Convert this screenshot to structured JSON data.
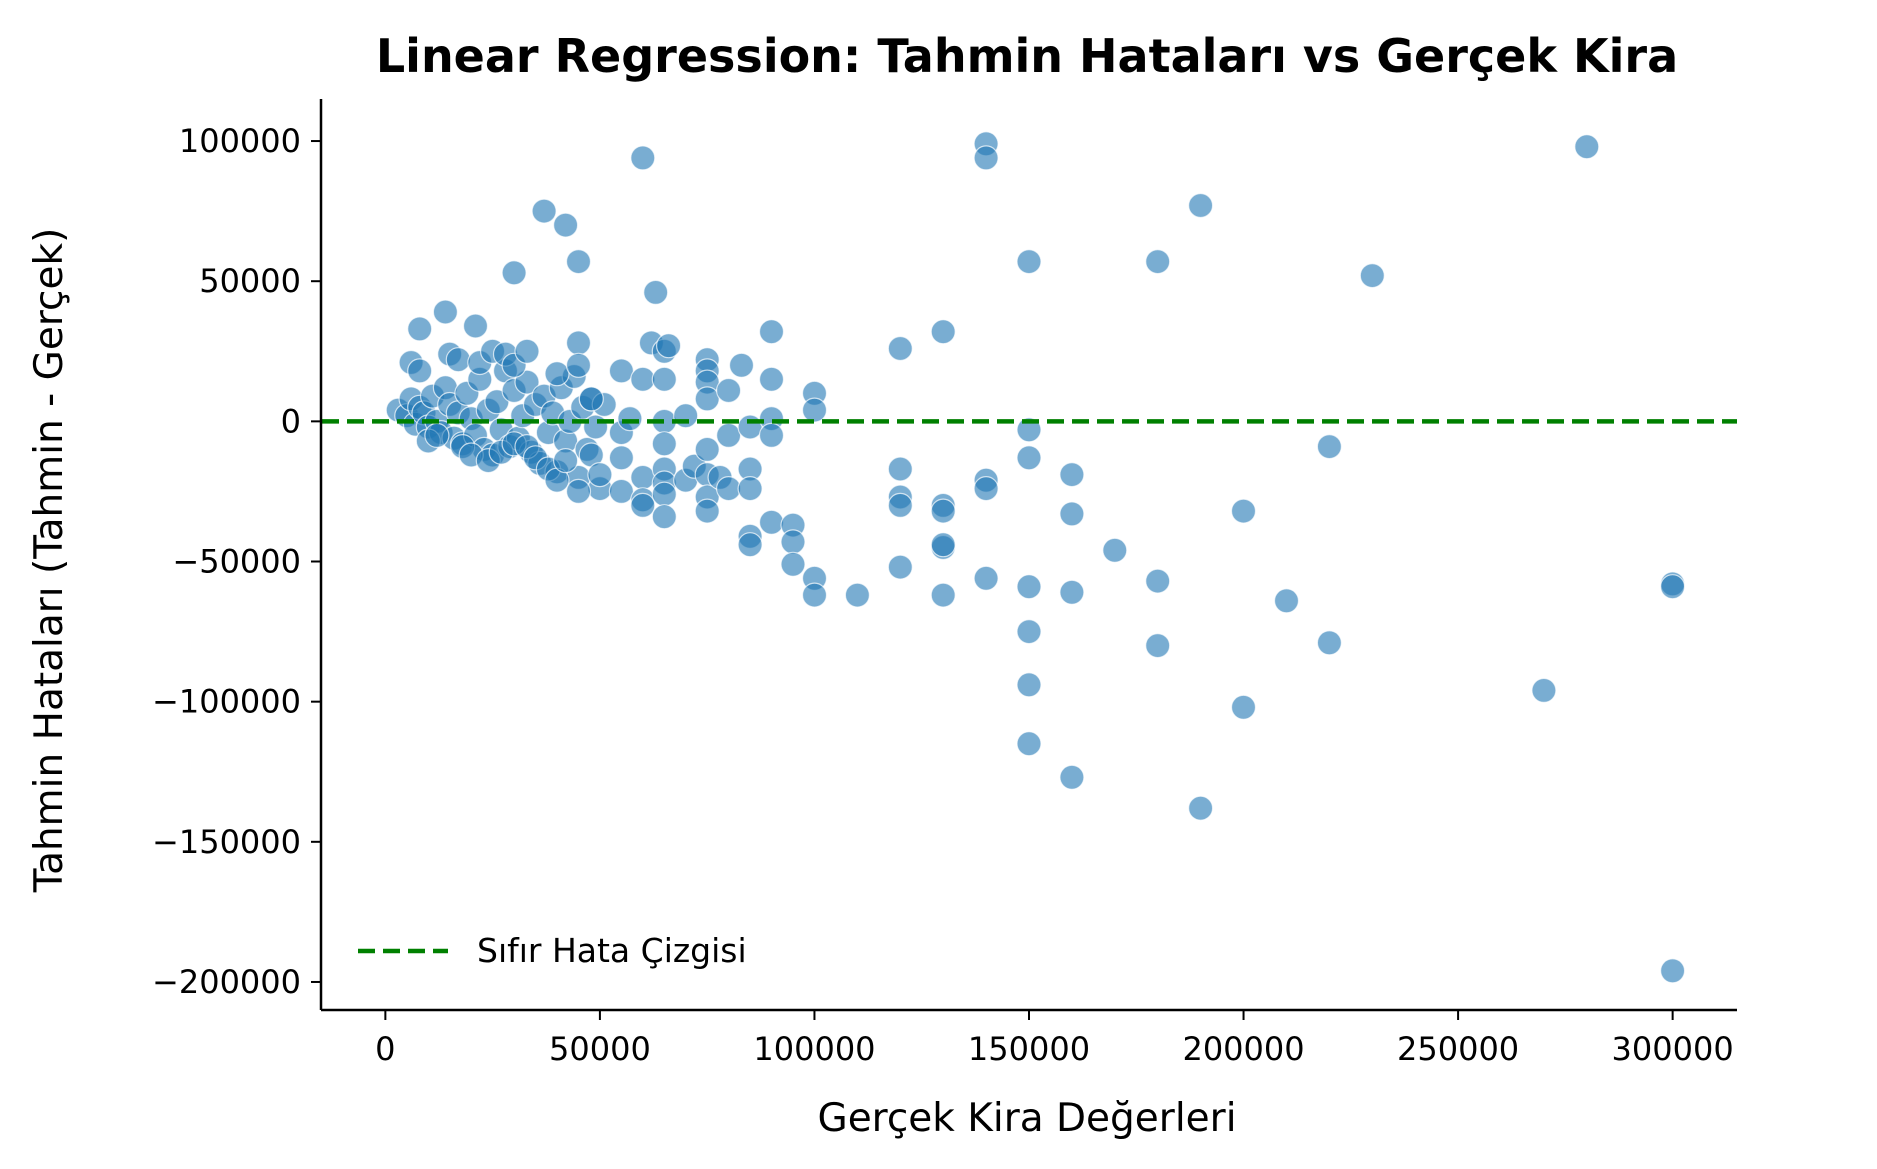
{
  "chart_data": {
    "type": "scatter",
    "title": "Linear Regression: Tahmin Hataları vs Gerçek Kira",
    "xlabel": "Gerçek Kira Değerleri",
    "ylabel": "Tahmin Hataları (Tahmin - Gerçek)",
    "xlim": [
      -15000,
      315000
    ],
    "ylim": [
      -210000,
      115000
    ],
    "x_ticks": [
      0,
      50000,
      100000,
      150000,
      200000,
      250000,
      300000
    ],
    "x_tick_labels": [
      "0",
      "50000",
      "100000",
      "150000",
      "200000",
      "250000",
      "300000"
    ],
    "y_ticks": [
      100000,
      50000,
      0,
      -50000,
      -100000,
      -150000,
      -200000
    ],
    "y_tick_labels": [
      "100000",
      "50000",
      "0",
      "−50000",
      "−100000",
      "−150000",
      "−200000"
    ],
    "grid": false,
    "legend": {
      "position": "lower-left",
      "entries": [
        "Sıfır Hata Çizgisi"
      ]
    },
    "reference_line": {
      "y": 0,
      "style": "dashed",
      "color": "#008000",
      "label": "Sıfır Hata Çizgisi"
    },
    "marker_color": "#1f77b4",
    "series": [
      {
        "points": [
          [
            3000,
            4000
          ],
          [
            5000,
            2000
          ],
          [
            6000,
            8000
          ],
          [
            7000,
            -1000
          ],
          [
            8000,
            5000
          ],
          [
            9000,
            3000
          ],
          [
            10000,
            -2000
          ],
          [
            11000,
            9000
          ],
          [
            12000,
            0
          ],
          [
            13000,
            -4000
          ],
          [
            14000,
            12000
          ],
          [
            15000,
            6000
          ],
          [
            16000,
            -6000
          ],
          [
            17000,
            3000
          ],
          [
            18000,
            -8000
          ],
          [
            19000,
            10000
          ],
          [
            20000,
            1000
          ],
          [
            21000,
            -5000
          ],
          [
            22000,
            15000
          ],
          [
            23000,
            -10000
          ],
          [
            24000,
            4000
          ],
          [
            25000,
            -12000
          ],
          [
            26000,
            7000
          ],
          [
            27000,
            -3000
          ],
          [
            28000,
            18000
          ],
          [
            29000,
            -9000
          ],
          [
            30000,
            11000
          ],
          [
            31000,
            -6000
          ],
          [
            32000,
            2000
          ],
          [
            33000,
            14000
          ],
          [
            34000,
            -11000
          ],
          [
            35000,
            6000
          ],
          [
            36000,
            -15000
          ],
          [
            37000,
            9000
          ],
          [
            38000,
            -4000
          ],
          [
            39000,
            3000
          ],
          [
            40000,
            -18000
          ],
          [
            41000,
            12000
          ],
          [
            42000,
            -7000
          ],
          [
            43000,
            0
          ],
          [
            44000,
            16000
          ],
          [
            45000,
            -20000
          ],
          [
            46000,
            5000
          ],
          [
            47000,
            -10000
          ],
          [
            48000,
            8000
          ],
          [
            49000,
            -2000
          ],
          [
            50000,
            -24000
          ],
          [
            51000,
            6000
          ],
          [
            6000,
            21000
          ],
          [
            8000,
            33000
          ],
          [
            8000,
            18000
          ],
          [
            14000,
            39000
          ],
          [
            15000,
            24000
          ],
          [
            17000,
            22000
          ],
          [
            21000,
            34000
          ],
          [
            22000,
            21000
          ],
          [
            25000,
            25000
          ],
          [
            28000,
            24000
          ],
          [
            30000,
            53000
          ],
          [
            30000,
            20000
          ],
          [
            33000,
            25000
          ],
          [
            37000,
            75000
          ],
          [
            40000,
            17000
          ],
          [
            42000,
            70000
          ],
          [
            45000,
            57000
          ],
          [
            45000,
            28000
          ],
          [
            45000,
            20000
          ],
          [
            48000,
            8000
          ],
          [
            10000,
            -7000
          ],
          [
            12000,
            -5000
          ],
          [
            18000,
            -9000
          ],
          [
            20000,
            -12000
          ],
          [
            24000,
            -14000
          ],
          [
            27000,
            -11000
          ],
          [
            30000,
            -8000
          ],
          [
            33000,
            -9000
          ],
          [
            35000,
            -13000
          ],
          [
            38000,
            -17000
          ],
          [
            40000,
            -21000
          ],
          [
            42000,
            -14000
          ],
          [
            45000,
            -25000
          ],
          [
            48000,
            -12000
          ],
          [
            50000,
            -19000
          ],
          [
            55000,
            18000
          ],
          [
            55000,
            -4000
          ],
          [
            55000,
            -13000
          ],
          [
            55000,
            -25000
          ],
          [
            57000,
            1000
          ],
          [
            60000,
            94000
          ],
          [
            60000,
            15000
          ],
          [
            60000,
            -20000
          ],
          [
            60000,
            -28000
          ],
          [
            60000,
            -30000
          ],
          [
            62000,
            28000
          ],
          [
            63000,
            46000
          ],
          [
            65000,
            25000
          ],
          [
            65000,
            15000
          ],
          [
            65000,
            0
          ],
          [
            65000,
            -8000
          ],
          [
            65000,
            -17000
          ],
          [
            65000,
            -22000
          ],
          [
            65000,
            -26000
          ],
          [
            65000,
            -34000
          ],
          [
            66000,
            27000
          ],
          [
            70000,
            2000
          ],
          [
            70000,
            -21000
          ],
          [
            72000,
            -16000
          ],
          [
            75000,
            22000
          ],
          [
            75000,
            18000
          ],
          [
            75000,
            14000
          ],
          [
            75000,
            8000
          ],
          [
            75000,
            -10000
          ],
          [
            75000,
            -19000
          ],
          [
            75000,
            -27000
          ],
          [
            75000,
            -32000
          ],
          [
            78000,
            -20000
          ],
          [
            80000,
            11000
          ],
          [
            80000,
            -5000
          ],
          [
            80000,
            -24000
          ],
          [
            83000,
            20000
          ],
          [
            85000,
            -2000
          ],
          [
            85000,
            -17000
          ],
          [
            85000,
            -24000
          ],
          [
            85000,
            -41000
          ],
          [
            85000,
            -44000
          ],
          [
            90000,
            32000
          ],
          [
            90000,
            15000
          ],
          [
            90000,
            1000
          ],
          [
            90000,
            -5000
          ],
          [
            90000,
            -36000
          ],
          [
            95000,
            -37000
          ],
          [
            95000,
            -43000
          ],
          [
            95000,
            -51000
          ],
          [
            100000,
            10000
          ],
          [
            100000,
            4000
          ],
          [
            100000,
            -56000
          ],
          [
            100000,
            -62000
          ],
          [
            110000,
            -62000
          ],
          [
            120000,
            26000
          ],
          [
            120000,
            -17000
          ],
          [
            120000,
            -27000
          ],
          [
            120000,
            -30000
          ],
          [
            120000,
            -52000
          ],
          [
            130000,
            32000
          ],
          [
            130000,
            -30000
          ],
          [
            130000,
            -32000
          ],
          [
            130000,
            -45000
          ],
          [
            130000,
            -44000
          ],
          [
            130000,
            -62000
          ],
          [
            140000,
            99000
          ],
          [
            140000,
            94000
          ],
          [
            140000,
            -21000
          ],
          [
            140000,
            -24000
          ],
          [
            140000,
            -56000
          ],
          [
            150000,
            57000
          ],
          [
            150000,
            -3000
          ],
          [
            150000,
            -13000
          ],
          [
            150000,
            -59000
          ],
          [
            150000,
            -75000
          ],
          [
            150000,
            -94000
          ],
          [
            150000,
            -115000
          ],
          [
            160000,
            -19000
          ],
          [
            160000,
            -33000
          ],
          [
            160000,
            -61000
          ],
          [
            160000,
            -127000
          ],
          [
            170000,
            -46000
          ],
          [
            180000,
            57000
          ],
          [
            180000,
            -57000
          ],
          [
            180000,
            -80000
          ],
          [
            190000,
            77000
          ],
          [
            190000,
            -138000
          ],
          [
            200000,
            -32000
          ],
          [
            200000,
            -102000
          ],
          [
            210000,
            -64000
          ],
          [
            220000,
            -9000
          ],
          [
            220000,
            -79000
          ],
          [
            230000,
            52000
          ],
          [
            270000,
            -96000
          ],
          [
            280000,
            98000
          ],
          [
            300000,
            -58000
          ],
          [
            300000,
            -59000
          ],
          [
            300000,
            -196000
          ]
        ]
      }
    ]
  }
}
